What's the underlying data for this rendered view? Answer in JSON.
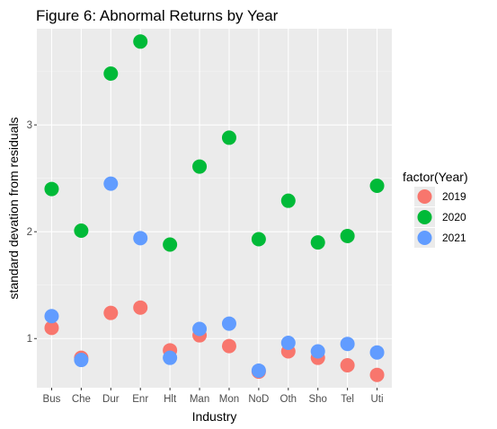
{
  "colors": {
    "panel_background": "#ebebeb",
    "grid_major": "#ffffff",
    "grid_minor": "#f5f5f5",
    "series": [
      "#f8766d",
      "#00ba38",
      "#619cff"
    ]
  },
  "chart_data": {
    "type": "scatter",
    "title": "Figure 6: Abnormal Returns by Year",
    "xlabel": "Industry",
    "ylabel": "standard devation from residuals",
    "categories": [
      "Bus",
      "Che",
      "Dur",
      "Enr",
      "Hlt",
      "Man",
      "Mon",
      "NoD",
      "Oth",
      "Sho",
      "Tel",
      "Uti"
    ],
    "yticks": [
      1,
      2,
      3
    ],
    "ylim": [
      0.54,
      3.9
    ],
    "grid": true,
    "legend": {
      "title": "factor(Year)",
      "position": "right"
    },
    "series": [
      {
        "name": "2019",
        "values": [
          1.1,
          0.82,
          1.24,
          1.29,
          0.89,
          1.03,
          0.93,
          0.69,
          0.88,
          0.82,
          0.75,
          0.66
        ]
      },
      {
        "name": "2020",
        "values": [
          2.4,
          2.01,
          3.48,
          3.78,
          1.88,
          2.61,
          2.88,
          1.93,
          2.29,
          1.9,
          1.96,
          2.43
        ]
      },
      {
        "name": "2021",
        "values": [
          1.21,
          0.8,
          2.45,
          1.94,
          0.82,
          1.09,
          1.14,
          0.7,
          0.96,
          0.88,
          0.95,
          0.87
        ]
      }
    ]
  }
}
